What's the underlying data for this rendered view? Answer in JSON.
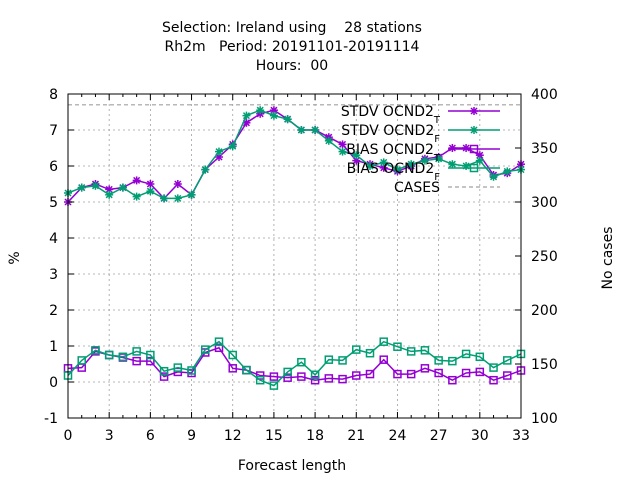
{
  "chart_data": {
    "type": "line",
    "title_lines": [
      "Selection: Ireland using    28 stations",
      "Rh2m   Period: 20191101-20191114",
      "Hours:  00"
    ],
    "xlabel": "Forecast length",
    "ylabel": "%",
    "y2label": "No cases",
    "xlim": [
      0,
      33
    ],
    "ylim": [
      -1,
      8
    ],
    "y2lim": [
      100,
      400
    ],
    "xticks": [
      0,
      3,
      6,
      9,
      12,
      15,
      18,
      21,
      24,
      27,
      30,
      33
    ],
    "yticks": [
      -1,
      0,
      1,
      2,
      3,
      4,
      5,
      6,
      7,
      8
    ],
    "y2ticks": [
      100,
      150,
      200,
      250,
      300,
      350,
      400
    ],
    "grid": true,
    "legend_position": "top-right",
    "x": [
      0,
      1,
      2,
      3,
      4,
      5,
      6,
      7,
      8,
      9,
      10,
      11,
      12,
      13,
      14,
      15,
      16,
      17,
      18,
      19,
      20,
      21,
      22,
      23,
      24,
      25,
      26,
      27,
      28,
      29,
      30,
      31,
      32,
      33
    ],
    "series": [
      {
        "name": "STDV OCND2",
        "subscript": "T",
        "color": "#9400d3",
        "marker": "star",
        "axis": "y",
        "values": [
          5.0,
          5.4,
          5.5,
          5.35,
          5.4,
          5.6,
          5.5,
          5.1,
          5.5,
          5.2,
          5.9,
          6.25,
          6.6,
          7.2,
          7.45,
          7.55,
          7.3,
          7.0,
          7.0,
          6.8,
          6.6,
          6.15,
          6.05,
          5.95,
          5.85,
          6.0,
          6.2,
          6.25,
          6.5,
          6.5,
          6.3,
          5.75,
          5.8,
          6.05
        ]
      },
      {
        "name": "STDV OCND2",
        "subscript": "F",
        "color": "#009e73",
        "marker": "star",
        "axis": "y",
        "values": [
          5.25,
          5.4,
          5.45,
          5.2,
          5.4,
          5.15,
          5.3,
          5.1,
          5.1,
          5.2,
          5.9,
          6.4,
          6.55,
          7.4,
          7.55,
          7.4,
          7.3,
          7.0,
          7.0,
          6.7,
          6.4,
          6.3,
          6.0,
          6.1,
          5.9,
          6.05,
          6.15,
          6.2,
          6.05,
          6.0,
          6.15,
          5.7,
          5.85,
          5.9
        ]
      },
      {
        "name": "BIAS OCND2",
        "subscript": "T",
        "color": "#9400d3",
        "marker": "square",
        "axis": "y",
        "values": [
          0.38,
          0.4,
          0.85,
          0.75,
          0.68,
          0.58,
          0.58,
          0.15,
          0.28,
          0.25,
          0.82,
          0.95,
          0.38,
          0.33,
          0.18,
          0.15,
          0.12,
          0.15,
          0.05,
          0.1,
          0.08,
          0.18,
          0.22,
          0.62,
          0.22,
          0.22,
          0.38,
          0.25,
          0.05,
          0.25,
          0.28,
          0.05,
          0.18,
          0.32
        ]
      },
      {
        "name": "BIAS OCND2",
        "subscript": "F",
        "color": "#009e73",
        "marker": "square",
        "axis": "y",
        "values": [
          0.18,
          0.6,
          0.88,
          0.75,
          0.7,
          0.85,
          0.75,
          0.3,
          0.4,
          0.32,
          0.9,
          1.12,
          0.75,
          0.33,
          0.05,
          -0.1,
          0.28,
          0.55,
          0.2,
          0.62,
          0.6,
          0.9,
          0.8,
          1.12,
          0.98,
          0.85,
          0.88,
          0.6,
          0.58,
          0.78,
          0.7,
          0.4,
          0.6,
          0.78
        ]
      },
      {
        "name": "CASES",
        "color": "#a0a0a0",
        "dashed": true,
        "axis": "y2",
        "values": [
          390,
          390,
          390,
          390,
          390,
          390,
          390,
          390,
          390,
          390,
          390,
          390,
          390,
          390,
          390,
          390,
          390,
          390,
          390,
          390,
          390,
          390,
          390,
          390,
          390,
          390,
          390,
          390,
          390,
          390,
          390,
          390,
          390,
          390
        ]
      }
    ]
  }
}
